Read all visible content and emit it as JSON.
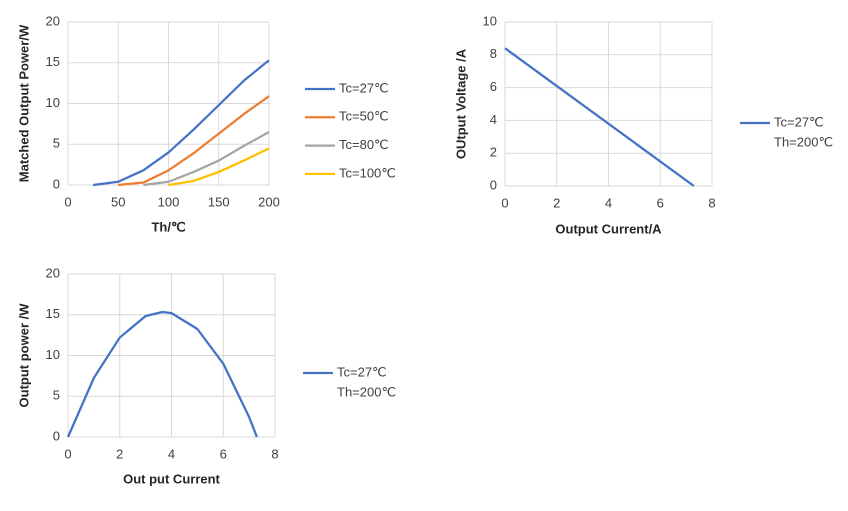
{
  "chart_data": [
    {
      "type": "line",
      "x_label": "Th/℃",
      "y_label": "Matched Output Power/W",
      "x": [
        25,
        50,
        75,
        100,
        125,
        150,
        175,
        200
      ],
      "series": [
        {
          "name": "Tc=27℃",
          "color": "#4472c4",
          "values": [
            0,
            0.4,
            1.8,
            4.0,
            6.8,
            9.8,
            12.8,
            15.3
          ]
        },
        {
          "name": "Tc=50℃",
          "color": "#ed7d31",
          "values": [
            null,
            0,
            0.3,
            1.8,
            3.9,
            6.3,
            8.7,
            10.9
          ]
        },
        {
          "name": "Tc=80℃",
          "color": "#a5a5a5",
          "values": [
            null,
            null,
            0,
            0.4,
            1.6,
            3.0,
            4.8,
            6.5
          ]
        },
        {
          "name": "Tc=100℃",
          "color": "#ffc000",
          "values": [
            null,
            null,
            null,
            0,
            0.5,
            1.6,
            3.0,
            4.5
          ]
        }
      ],
      "xlim": [
        0,
        200
      ],
      "ylim": [
        0,
        20
      ],
      "xticks": [
        0,
        50,
        100,
        150,
        200
      ],
      "yticks": [
        0,
        5,
        10,
        15,
        20
      ],
      "grid": true,
      "legend": "right"
    },
    {
      "type": "line",
      "x_label": "Output Current/A",
      "y_label": "OUtput Voltage /A",
      "x": [
        0,
        7.3
      ],
      "series": [
        {
          "name": "Tc=27℃",
          "color": "#4472c4",
          "values": [
            8.4,
            0
          ]
        }
      ],
      "legend_note": "Th=200℃",
      "xlim": [
        0,
        8
      ],
      "ylim": [
        0,
        10
      ],
      "xticks": [
        0,
        2,
        4,
        6,
        8
      ],
      "yticks": [
        0,
        2,
        4,
        6,
        8,
        10
      ],
      "grid": true,
      "legend": "right"
    },
    {
      "type": "line",
      "x_label": "Out put Current",
      "y_label": "Output power /W",
      "x": [
        0,
        1,
        2,
        3,
        3.65,
        4,
        5,
        6,
        7,
        7.3
      ],
      "series": [
        {
          "name": "Tc=27℃",
          "color": "#4472c4",
          "values": [
            0,
            7.25,
            12.2,
            14.85,
            15.34,
            15.2,
            13.25,
            9.0,
            2.45,
            0
          ]
        }
      ],
      "legend_note": "Th=200℃",
      "xlim": [
        0,
        8
      ],
      "ylim": [
        0,
        20
      ],
      "xticks": [
        0,
        2,
        4,
        6,
        8
      ],
      "yticks": [
        0,
        5,
        10,
        15,
        20
      ],
      "grid": true,
      "legend": "right"
    }
  ]
}
